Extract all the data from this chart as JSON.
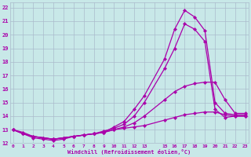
{
  "xlabel": "Windchill (Refroidissement éolien,°C)",
  "bg_color": "#c8e8e8",
  "grid_color": "#aabbcc",
  "line_color": "#aa00aa",
  "xmin": 0,
  "xmax": 23,
  "ymin": 12,
  "ymax": 22.4,
  "lines": [
    {
      "x": [
        0,
        1,
        2,
        3,
        4,
        5,
        6,
        7,
        8,
        9,
        10,
        11,
        12,
        13,
        15,
        16,
        17,
        18,
        19,
        20,
        21,
        22,
        23
      ],
      "y": [
        13.0,
        12.7,
        12.4,
        12.3,
        12.2,
        12.3,
        12.5,
        12.6,
        12.7,
        12.8,
        13.2,
        13.6,
        14.5,
        15.5,
        18.2,
        20.4,
        21.8,
        21.3,
        20.3,
        15.0,
        14.2,
        14.1,
        14.1
      ]
    },
    {
      "x": [
        0,
        1,
        2,
        3,
        4,
        5,
        6,
        7,
        8,
        9,
        10,
        11,
        12,
        13,
        15,
        16,
        17,
        18,
        19,
        20,
        21,
        22,
        23
      ],
      "y": [
        13.0,
        12.7,
        12.5,
        12.4,
        12.3,
        12.4,
        12.5,
        12.6,
        12.7,
        12.9,
        13.1,
        13.4,
        14.0,
        15.0,
        17.5,
        19.0,
        20.8,
        20.4,
        19.5,
        14.5,
        13.9,
        14.0,
        14.0
      ]
    },
    {
      "x": [
        0,
        1,
        2,
        3,
        4,
        5,
        6,
        7,
        8,
        9,
        10,
        11,
        12,
        13,
        15,
        16,
        17,
        18,
        19,
        20,
        21,
        22,
        23
      ],
      "y": [
        13.0,
        12.7,
        12.5,
        12.4,
        12.3,
        12.4,
        12.5,
        12.6,
        12.7,
        12.8,
        13.0,
        13.2,
        13.5,
        14.0,
        15.2,
        15.8,
        16.2,
        16.4,
        16.5,
        16.5,
        15.2,
        14.2,
        14.2
      ]
    },
    {
      "x": [
        0,
        1,
        2,
        3,
        4,
        5,
        6,
        7,
        8,
        9,
        10,
        11,
        12,
        13,
        15,
        16,
        17,
        18,
        19,
        20,
        21,
        22,
        23
      ],
      "y": [
        13.0,
        12.8,
        12.5,
        12.4,
        12.3,
        12.4,
        12.5,
        12.6,
        12.7,
        12.8,
        13.0,
        13.1,
        13.2,
        13.3,
        13.7,
        13.9,
        14.1,
        14.2,
        14.3,
        14.3,
        14.1,
        14.0,
        14.0
      ]
    }
  ]
}
